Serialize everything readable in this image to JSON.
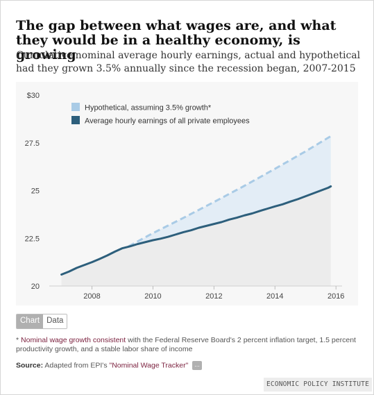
{
  "header": {
    "title": "The gap between what wages are, and what they would be in a healthy economy, is growing",
    "subtitle": "Cumulative nominal average hourly earnings, actual and hypothetical had they grown 3.5% annually since the recession began, 2007-2015"
  },
  "controls": {
    "chart_label": "Chart",
    "data_label": "Data"
  },
  "footnote": {
    "marker": "*",
    "highlight": "Nominal wage growth consistent",
    "text": " with the Federal Reserve Board's 2 percent inflation target, 1.5 percent productivity growth, and a stable labor share of income"
  },
  "source": {
    "label": "Source:",
    "prefix": " Adapted from EPI's ",
    "link": "\"Nominal Wage Tracker\"",
    "more": "..."
  },
  "brand": "ECONOMIC POLICY INSTITUTE",
  "colors": {
    "actual": "#2d5f7c",
    "hypothetical": "#a9cbe6",
    "gap_fill": "#e3edf6",
    "under_fill": "#ececec",
    "panel": "#f7f7f7"
  },
  "chart_data": {
    "type": "line",
    "ylim": [
      20,
      30
    ],
    "xlim": [
      2006.6,
      2016.2
    ],
    "y_ticks": [
      {
        "value": 30,
        "label": "$30"
      },
      {
        "value": 27.5,
        "label": "27.5"
      },
      {
        "value": 25,
        "label": "25"
      },
      {
        "value": 22.5,
        "label": "22.5"
      },
      {
        "value": 20,
        "label": "20"
      }
    ],
    "x_ticks": [
      {
        "value": 2008,
        "label": "2008"
      },
      {
        "value": 2010,
        "label": "2010"
      },
      {
        "value": 2012,
        "label": "2012"
      },
      {
        "value": 2014,
        "label": "2014"
      },
      {
        "value": 2016,
        "label": "2016"
      }
    ],
    "legend_position": "top-left",
    "series": [
      {
        "name": "Hypothetical, assuming 3.5% growth*",
        "style": "dashed",
        "x": [
          2009.2,
          2010,
          2011,
          2012,
          2013,
          2014,
          2015,
          2015.83
        ],
        "y": [
          22.08,
          22.77,
          23.57,
          24.4,
          25.25,
          26.14,
          27.05,
          27.85
        ]
      },
      {
        "name": "Average hourly earnings of all private employees",
        "style": "solid",
        "x": [
          2007.0,
          2007.25,
          2007.5,
          2007.75,
          2008.0,
          2008.25,
          2008.5,
          2008.75,
          2009.0,
          2009.25,
          2009.5,
          2009.75,
          2010.0,
          2010.25,
          2010.5,
          2010.75,
          2011.0,
          2011.25,
          2011.5,
          2011.75,
          2012.0,
          2012.25,
          2012.5,
          2012.75,
          2013.0,
          2013.25,
          2013.5,
          2013.75,
          2014.0,
          2014.25,
          2014.5,
          2014.75,
          2015.0,
          2015.25,
          2015.5,
          2015.75,
          2015.83
        ],
        "y": [
          20.6,
          20.76,
          20.95,
          21.1,
          21.25,
          21.42,
          21.6,
          21.8,
          21.98,
          22.08,
          22.2,
          22.3,
          22.4,
          22.48,
          22.58,
          22.7,
          22.82,
          22.92,
          23.05,
          23.15,
          23.25,
          23.35,
          23.48,
          23.58,
          23.7,
          23.8,
          23.93,
          24.05,
          24.17,
          24.28,
          24.42,
          24.55,
          24.7,
          24.85,
          25.0,
          25.15,
          25.22
        ]
      }
    ]
  }
}
